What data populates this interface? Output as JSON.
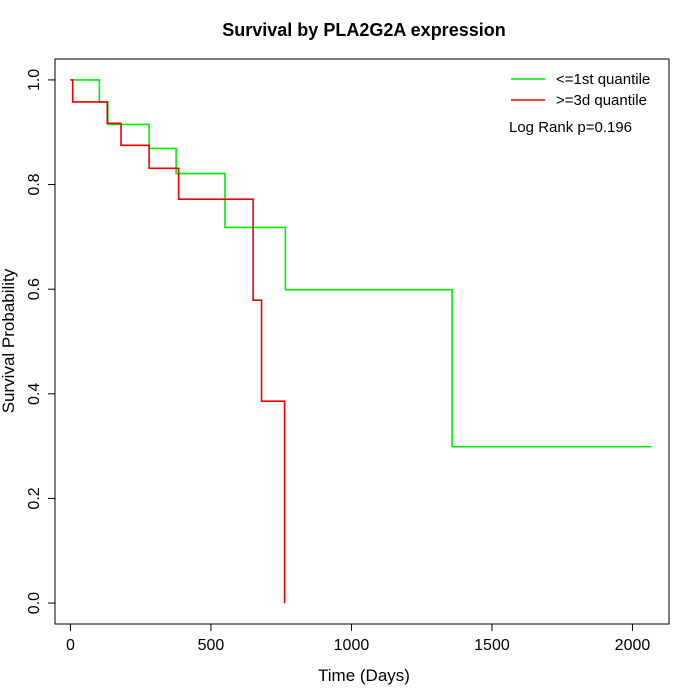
{
  "chart_data": {
    "type": "line",
    "title": "Survival by PLA2G2A expression",
    "xlabel": "Time (Days)",
    "ylabel": "Survival Probability",
    "xlim": [
      -55,
      2130
    ],
    "ylim": [
      -0.04,
      1.04
    ],
    "x_ticks": [
      0,
      500,
      1000,
      1500,
      2000
    ],
    "y_ticks": [
      0.0,
      0.2,
      0.4,
      0.6,
      0.8,
      1.0
    ],
    "x_tick_labels": [
      "0",
      "500",
      "1000",
      "1500",
      "2000"
    ],
    "y_tick_labels": [
      "0.0",
      "0.2",
      "0.4",
      "0.6",
      "0.8",
      "1.0"
    ],
    "legend_position": "top-right",
    "annotation": "Log Rank p=0.196",
    "series": [
      {
        "name": "<=1st quantile",
        "color": "#00ee00",
        "x": [
          0,
          103,
          133,
          280,
          376,
          550,
          765,
          1358,
          2068
        ],
        "y": [
          1.0,
          0.958,
          0.915,
          0.869,
          0.821,
          0.718,
          0.599,
          0.299,
          0.299
        ]
      },
      {
        "name": ">=3d quantile",
        "color": "#ee0000",
        "x": [
          0,
          8,
          104,
          131,
          180,
          280,
          385,
          650,
          680,
          762
        ],
        "y": [
          1.0,
          0.958,
          0.958,
          0.917,
          0.875,
          0.831,
          0.772,
          0.579,
          0.386,
          0.0
        ]
      }
    ]
  }
}
